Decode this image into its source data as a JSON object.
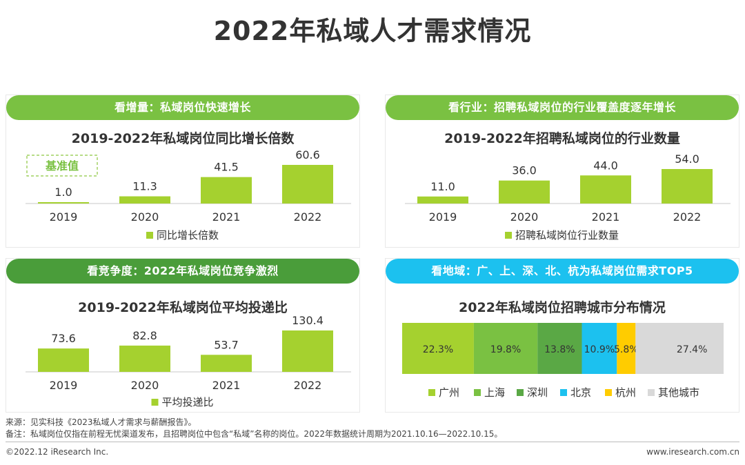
{
  "title": "2022年私域人才需求情况",
  "colors": {
    "header_green": "#7ac142",
    "header_dark": "#4a9d3a",
    "header_blue": "#1cc1ef",
    "bar": "#a5d12f",
    "base_box": "#8cc63e"
  },
  "panels": [
    {
      "header": "看增量：私域岗位快速增长",
      "subtitle": "2019-2022年私域岗位同比增长倍数",
      "annotation": "基准值",
      "legend": "同比增长倍数"
    },
    {
      "header": "看行业：招聘私域岗位的行业覆盖度逐年增长",
      "subtitle": "2019-2022年招聘私域岗位的行业数量",
      "legend": "招聘私域岗位行业数量"
    },
    {
      "header": "看竞争度：2022年私域岗位竞争激烈",
      "subtitle": "2019-2022年私域岗位平均投递比",
      "legend": "平均投递比"
    },
    {
      "header": "看地域：广、上、深、北、杭为私域岗位需求TOP5",
      "subtitle": "2022年私域岗位招聘城市分布情况"
    }
  ],
  "chart_data": [
    {
      "type": "bar",
      "title": "2019-2022年私域岗位同比增长倍数",
      "categories": [
        "2019",
        "2020",
        "2021",
        "2022"
      ],
      "series": [
        {
          "name": "同比增长倍数",
          "values": [
            1.0,
            11.3,
            41.5,
            60.6
          ]
        }
      ],
      "labels": [
        "1.0",
        "11.3",
        "41.5",
        "60.6"
      ],
      "ylim": [
        0,
        60.6
      ],
      "legend": "bottom",
      "grid": false
    },
    {
      "type": "bar",
      "title": "2019-2022年招聘私域岗位的行业数量",
      "categories": [
        "2019",
        "2020",
        "2021",
        "2022"
      ],
      "series": [
        {
          "name": "招聘私域岗位行业数量",
          "values": [
            11.0,
            36.0,
            44.0,
            54.0
          ]
        }
      ],
      "labels": [
        "11.0",
        "36.0",
        "44.0",
        "54.0"
      ],
      "ylim": [
        0,
        54
      ],
      "legend": "bottom",
      "grid": false
    },
    {
      "type": "bar",
      "title": "2019-2022年私域岗位平均投递比",
      "categories": [
        "2019",
        "2020",
        "2021",
        "2022"
      ],
      "series": [
        {
          "name": "平均投递比",
          "values": [
            73.6,
            82.8,
            53.7,
            130.4
          ]
        }
      ],
      "labels": [
        "73.6",
        "82.8",
        "53.7",
        "130.4"
      ],
      "ylim": [
        0,
        130.4
      ],
      "legend": "bottom",
      "grid": false
    },
    {
      "type": "bar",
      "stacked": true,
      "title": "2022年私域岗位招聘城市分布情况",
      "categories": [
        "广州",
        "上海",
        "深圳",
        "北京",
        "杭州",
        "其他城市"
      ],
      "values": [
        22.3,
        19.8,
        13.8,
        10.9,
        5.8,
        27.4
      ],
      "labels": [
        "22.3%",
        "19.8%",
        "13.8%",
        "10.9%",
        "5.8%",
        "27.4%"
      ],
      "colors": [
        "#a5d12f",
        "#7ac142",
        "#5aa845",
        "#1cc1ef",
        "#ffcc00",
        "#d9d9d9"
      ],
      "legend": "bottom"
    }
  ],
  "footer": {
    "source": "来源：见实科技《2023私域人才需求与薪酬报告》。",
    "note": "备注：私域岗位仅指在前程无忧渠道发布，且招聘岗位中包含“私域”名称的岗位。2022年数据统计周期为2021.10.16—2022.10.15。",
    "copyright": "©2022.12 iResearch Inc.",
    "website": "www.iresearch.com.cn"
  }
}
